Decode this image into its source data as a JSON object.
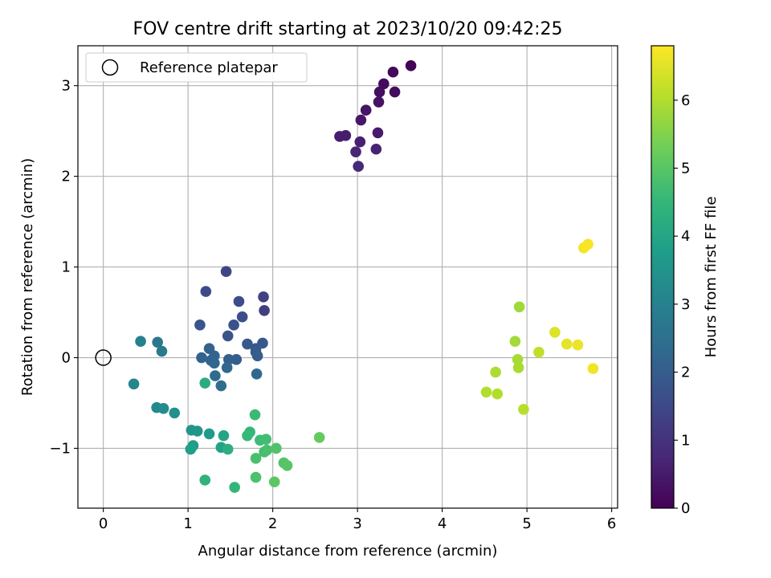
{
  "chart_data": {
    "type": "scatter",
    "title": "FOV centre drift starting at 2023/10/20 09:42:25",
    "xlabel": "Angular distance from reference (arcmin)",
    "ylabel": "Rotation from reference (arcmin)",
    "xlim": [
      -0.3,
      6.07
    ],
    "ylim": [
      -1.66,
      3.44
    ],
    "xticks": [
      "0",
      "1",
      "2",
      "3",
      "4",
      "5",
      "6"
    ],
    "yticks": [
      "−1",
      "0",
      "1",
      "2",
      "3"
    ],
    "grid": true,
    "legend": {
      "placement": "top-left",
      "entries": [
        "Reference platepar"
      ]
    },
    "reference_point": {
      "x": 0,
      "y": 0
    },
    "colorbar": {
      "label": "Hours from first FF file",
      "ticks": [
        "0",
        "1",
        "2",
        "3",
        "4",
        "5",
        "6"
      ],
      "range": [
        0,
        6.8
      ],
      "colormap": "viridis"
    },
    "points": [
      {
        "x": 3.63,
        "y": 3.22,
        "c": 0.05
      },
      {
        "x": 3.42,
        "y": 3.15,
        "c": 0.12
      },
      {
        "x": 3.31,
        "y": 3.02,
        "c": 0.18
      },
      {
        "x": 3.44,
        "y": 2.93,
        "c": 0.22
      },
      {
        "x": 3.26,
        "y": 2.93,
        "c": 0.28
      },
      {
        "x": 3.25,
        "y": 2.82,
        "c": 0.32
      },
      {
        "x": 3.1,
        "y": 2.73,
        "c": 0.38
      },
      {
        "x": 3.04,
        "y": 2.62,
        "c": 0.42
      },
      {
        "x": 3.24,
        "y": 2.48,
        "c": 0.48
      },
      {
        "x": 2.79,
        "y": 2.44,
        "c": 0.52
      },
      {
        "x": 2.86,
        "y": 2.45,
        "c": 0.55
      },
      {
        "x": 3.03,
        "y": 2.38,
        "c": 0.6
      },
      {
        "x": 3.22,
        "y": 2.3,
        "c": 0.65
      },
      {
        "x": 2.98,
        "y": 2.27,
        "c": 0.7
      },
      {
        "x": 3.01,
        "y": 2.11,
        "c": 0.75
      },
      {
        "x": 1.9,
        "y": 0.52,
        "c": 1.25
      },
      {
        "x": 1.89,
        "y": 0.67,
        "c": 1.35
      },
      {
        "x": 1.45,
        "y": 0.95,
        "c": 1.45
      },
      {
        "x": 1.21,
        "y": 0.73,
        "c": 1.55
      },
      {
        "x": 1.6,
        "y": 0.62,
        "c": 1.6
      },
      {
        "x": 1.64,
        "y": 0.45,
        "c": 1.65
      },
      {
        "x": 1.54,
        "y": 0.36,
        "c": 1.7
      },
      {
        "x": 1.47,
        "y": 0.24,
        "c": 1.75
      },
      {
        "x": 1.14,
        "y": 0.36,
        "c": 1.8
      },
      {
        "x": 1.88,
        "y": 0.16,
        "c": 1.85
      },
      {
        "x": 1.7,
        "y": 0.15,
        "c": 1.9
      },
      {
        "x": 1.8,
        "y": 0.1,
        "c": 1.93
      },
      {
        "x": 1.8,
        "y": 0.06,
        "c": 1.96
      },
      {
        "x": 1.82,
        "y": 0.02,
        "c": 2.0
      },
      {
        "x": 1.57,
        "y": -0.02,
        "c": 2.03
      },
      {
        "x": 1.48,
        "y": -0.02,
        "c": 2.06
      },
      {
        "x": 1.25,
        "y": 0.1,
        "c": 2.1
      },
      {
        "x": 1.16,
        "y": 0.0,
        "c": 2.13
      },
      {
        "x": 1.31,
        "y": 0.02,
        "c": 2.16
      },
      {
        "x": 1.27,
        "y": -0.03,
        "c": 2.2
      },
      {
        "x": 1.31,
        "y": -0.06,
        "c": 2.23
      },
      {
        "x": 1.46,
        "y": -0.11,
        "c": 2.26
      },
      {
        "x": 1.81,
        "y": -0.18,
        "c": 2.3
      },
      {
        "x": 1.32,
        "y": -0.2,
        "c": 2.35
      },
      {
        "x": 1.39,
        "y": -0.31,
        "c": 2.4
      },
      {
        "x": 0.64,
        "y": 0.17,
        "c": 2.7
      },
      {
        "x": 0.69,
        "y": 0.07,
        "c": 2.8
      },
      {
        "x": 0.44,
        "y": 0.18,
        "c": 3.0
      },
      {
        "x": 0.36,
        "y": -0.29,
        "c": 3.1
      },
      {
        "x": 0.63,
        "y": -0.55,
        "c": 3.2
      },
      {
        "x": 0.71,
        "y": -0.56,
        "c": 3.3
      },
      {
        "x": 0.84,
        "y": -0.61,
        "c": 3.4
      },
      {
        "x": 1.04,
        "y": -0.8,
        "c": 3.5
      },
      {
        "x": 1.11,
        "y": -0.81,
        "c": 3.6
      },
      {
        "x": 1.25,
        "y": -0.84,
        "c": 3.7
      },
      {
        "x": 1.06,
        "y": -0.97,
        "c": 3.75
      },
      {
        "x": 1.03,
        "y": -1.01,
        "c": 3.8
      },
      {
        "x": 1.39,
        "y": -0.99,
        "c": 3.9
      },
      {
        "x": 1.42,
        "y": -0.86,
        "c": 4.0
      },
      {
        "x": 1.2,
        "y": -0.28,
        "c": 4.2
      },
      {
        "x": 1.47,
        "y": -1.01,
        "c": 4.25
      },
      {
        "x": 1.2,
        "y": -1.35,
        "c": 4.35
      },
      {
        "x": 1.55,
        "y": -1.43,
        "c": 4.45
      },
      {
        "x": 1.73,
        "y": -0.82,
        "c": 4.5
      },
      {
        "x": 1.7,
        "y": -0.86,
        "c": 4.55
      },
      {
        "x": 1.79,
        "y": -0.63,
        "c": 4.6
      },
      {
        "x": 1.85,
        "y": -0.91,
        "c": 4.65
      },
      {
        "x": 1.92,
        "y": -0.9,
        "c": 4.7
      },
      {
        "x": 1.9,
        "y": -1.04,
        "c": 4.75
      },
      {
        "x": 1.93,
        "y": -1.02,
        "c": 4.8
      },
      {
        "x": 1.8,
        "y": -1.11,
        "c": 4.8
      },
      {
        "x": 1.8,
        "y": -1.32,
        "c": 4.85
      },
      {
        "x": 2.04,
        "y": -1.0,
        "c": 4.9
      },
      {
        "x": 2.13,
        "y": -1.16,
        "c": 4.95
      },
      {
        "x": 2.17,
        "y": -1.19,
        "c": 5.0
      },
      {
        "x": 2.02,
        "y": -1.37,
        "c": 5.05
      },
      {
        "x": 2.55,
        "y": -0.88,
        "c": 5.15
      },
      {
        "x": 4.91,
        "y": 0.56,
        "c": 5.8
      },
      {
        "x": 4.86,
        "y": 0.18,
        "c": 5.85
      },
      {
        "x": 4.89,
        "y": -0.02,
        "c": 5.9
      },
      {
        "x": 4.9,
        "y": -0.11,
        "c": 5.92
      },
      {
        "x": 4.63,
        "y": -0.16,
        "c": 5.95
      },
      {
        "x": 4.52,
        "y": -0.38,
        "c": 6.0
      },
      {
        "x": 4.65,
        "y": -0.4,
        "c": 6.02
      },
      {
        "x": 4.96,
        "y": -0.57,
        "c": 6.05
      },
      {
        "x": 5.14,
        "y": 0.06,
        "c": 6.15
      },
      {
        "x": 5.33,
        "y": 0.28,
        "c": 6.45
      },
      {
        "x": 5.47,
        "y": 0.15,
        "c": 6.55
      },
      {
        "x": 5.6,
        "y": 0.14,
        "c": 6.6
      },
      {
        "x": 5.78,
        "y": -0.12,
        "c": 6.65
      },
      {
        "x": 5.67,
        "y": 1.21,
        "c": 6.7
      },
      {
        "x": 5.72,
        "y": 1.25,
        "c": 6.75
      }
    ]
  }
}
